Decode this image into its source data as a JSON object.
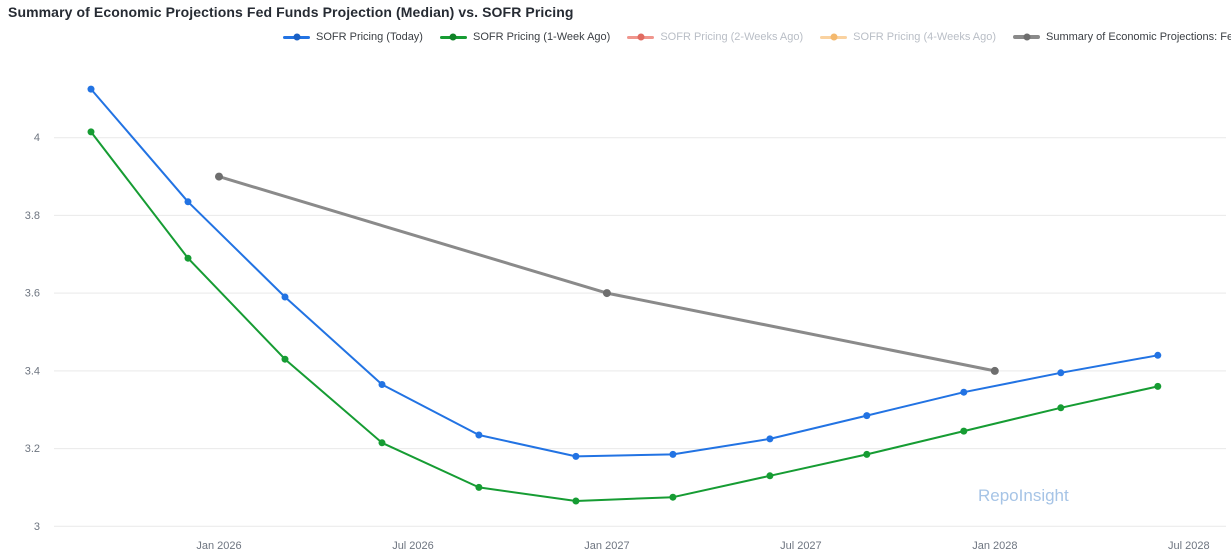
{
  "page": {
    "title": "Summary of Economic Projections Fed Funds Projection (Median) vs. SOFR Pricing",
    "watermark": "RepoInsight"
  },
  "legend": [
    {
      "id": "sofr-today",
      "label": "SOFR Pricing (Today)",
      "color": "#2273e3",
      "dot_color": "#1a60c4",
      "active": true,
      "thick": false
    },
    {
      "id": "sofr-1w",
      "label": "SOFR Pricing (1-Week Ago)",
      "color": "#169c33",
      "dot_color": "#108227",
      "active": true,
      "thick": false
    },
    {
      "id": "sofr-2w",
      "label": "SOFR Pricing (2-Weeks Ago)",
      "color": "#f0968d",
      "dot_color": "#e06b61",
      "active": false,
      "thick": false
    },
    {
      "id": "sofr-4w",
      "label": "SOFR Pricing (4-Weeks Ago)",
      "color": "#fad2a0",
      "dot_color": "#f4b96e",
      "active": false,
      "thick": false
    },
    {
      "id": "sep-fed-funds",
      "label": "Summary of Economic Projections: Fed Funds Rate",
      "color": "#8a8a8a",
      "dot_color": "#6e6e6e",
      "active": true,
      "thick": true
    }
  ],
  "chart_data": {
    "type": "line",
    "title": "Summary of Economic Projections Fed Funds Projection (Median) vs. SOFR Pricing",
    "xlabel": "",
    "ylabel": "",
    "x_range": [
      2025.59,
      2028.59
    ],
    "y_range": [
      3.0,
      4.2
    ],
    "grid": "horizontal",
    "legend_position": "top",
    "x_ticks": [
      {
        "x": 2026.0,
        "label": "Jan 2026"
      },
      {
        "x": 2026.5,
        "label": "Jul 2026"
      },
      {
        "x": 2027.0,
        "label": "Jan 2027"
      },
      {
        "x": 2027.5,
        "label": "Jul 2027"
      },
      {
        "x": 2028.0,
        "label": "Jan 2028"
      },
      {
        "x": 2028.5,
        "label": "Jul 2028"
      }
    ],
    "y_ticks": [
      {
        "y": 3.0,
        "label": "3"
      },
      {
        "y": 3.2,
        "label": "3.2"
      },
      {
        "y": 3.4,
        "label": "3.4"
      },
      {
        "y": 3.6,
        "label": "3.6"
      },
      {
        "y": 3.8,
        "label": "3.8"
      },
      {
        "y": 4.0,
        "label": "4"
      }
    ],
    "series": [
      {
        "id": "sofr-today",
        "name": "SOFR Pricing (Today)",
        "color": "#2273e3",
        "marker_color": "#2273e3",
        "line_width": 2,
        "marker_radius": 3.5,
        "visible": true,
        "x": [
          2025.67,
          2025.92,
          2026.17,
          2026.42,
          2026.67,
          2026.92,
          2027.17,
          2027.42,
          2027.67,
          2027.92,
          2028.17,
          2028.42
        ],
        "y": [
          4.125,
          3.835,
          3.59,
          3.365,
          3.235,
          3.18,
          3.185,
          3.225,
          3.285,
          3.345,
          3.395,
          3.44
        ]
      },
      {
        "id": "sofr-1w",
        "name": "SOFR Pricing (1-Week Ago)",
        "color": "#169c33",
        "marker_color": "#169c33",
        "line_width": 2,
        "marker_radius": 3.5,
        "visible": true,
        "x": [
          2025.67,
          2025.92,
          2026.17,
          2026.42,
          2026.67,
          2026.92,
          2027.17,
          2027.42,
          2027.67,
          2027.92,
          2028.17,
          2028.42
        ],
        "y": [
          4.015,
          3.69,
          3.43,
          3.215,
          3.1,
          3.065,
          3.075,
          3.13,
          3.185,
          3.245,
          3.305,
          3.36
        ]
      },
      {
        "id": "sofr-2w",
        "name": "SOFR Pricing (2-Weeks Ago)",
        "color": "#f0968d",
        "marker_color": "#e06b61",
        "line_width": 2,
        "marker_radius": 3.5,
        "visible": false,
        "x": [],
        "y": []
      },
      {
        "id": "sofr-4w",
        "name": "SOFR Pricing (4-Weeks Ago)",
        "color": "#fad2a0",
        "marker_color": "#f4b96e",
        "line_width": 2,
        "marker_radius": 3.5,
        "visible": false,
        "x": [],
        "y": []
      },
      {
        "id": "sep-fed-funds",
        "name": "Summary of Economic Projections: Fed Funds Rate",
        "color": "#8a8a8a",
        "marker_color": "#6e6e6e",
        "line_width": 3,
        "marker_radius": 4,
        "visible": true,
        "x": [
          2026.0,
          2027.0,
          2028.0
        ],
        "y": [
          3.9,
          3.6,
          3.4
        ]
      }
    ]
  }
}
